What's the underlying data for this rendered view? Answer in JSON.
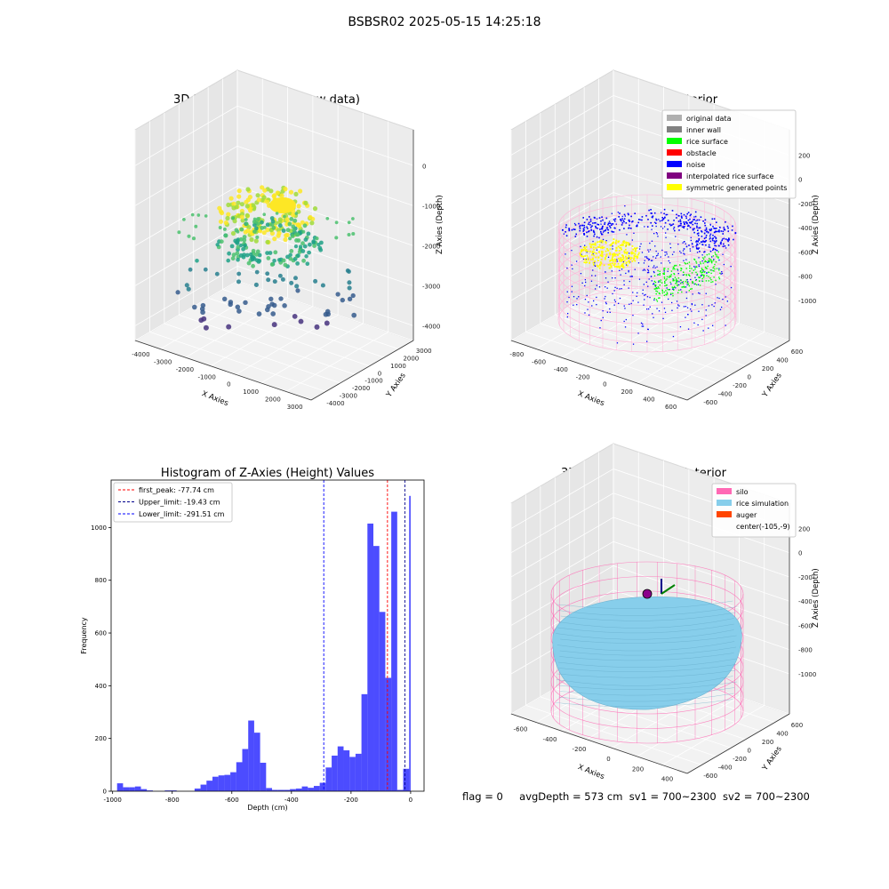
{
  "page_title": "BSBSR02 2025-05-15 14:25:18",
  "footer": {
    "flag": "flag = 0",
    "avg_depth": "avgDepth = 573 cm",
    "sv1": "sv1 = 700~2300",
    "sv2": "sv2 = 700~2300"
  },
  "chart_data": [
    {
      "type": "scatter",
      "title": "3D Plot of Silo Interior(row data)",
      "xlabel": "X Axies",
      "ylabel": "Y Axies",
      "zlabel": "Z Axies (Depth)",
      "x_ticks": [
        "-4000",
        "-3000",
        "-2000",
        "-1000",
        "0",
        "1000",
        "2000",
        "3000"
      ],
      "y_ticks": [
        "-4000",
        "-3000",
        "-2000",
        "-1000",
        "0",
        "1000",
        "2000",
        "3000"
      ],
      "z_ticks": [
        "0",
        "-1000",
        "-2000",
        "-3000",
        "-4000"
      ],
      "xlim": [
        -4000,
        3500
      ],
      "ylim": [
        -4000,
        3500
      ],
      "zlim": [
        -4500,
        300
      ],
      "colormap": [
        "#fde725",
        "#a0da39",
        "#4ac16d",
        "#1fa187",
        "#277f8e",
        "#365c8d",
        "#46327e"
      ]
    },
    {
      "type": "scatter",
      "title": "3D classify of Silo Interior",
      "xlabel": "X Axies",
      "ylabel": "Y Axies",
      "zlabel": "Z Axies (Depth)",
      "x_ticks": [
        "-800",
        "-600",
        "-400",
        "-200",
        "0",
        "200",
        "400",
        "600"
      ],
      "y_ticks": [
        "-600",
        "-400",
        "-200",
        "0",
        "200",
        "400",
        "600"
      ],
      "z_ticks": [
        "200",
        "0",
        "-200",
        "-400",
        "-600",
        "-800",
        "-1000"
      ],
      "legend_position": "top-right",
      "legend": [
        {
          "label": "original data",
          "color": "#b0b0b0"
        },
        {
          "label": "inner wall",
          "color": "#808080"
        },
        {
          "label": "rice surface",
          "color": "#00ff00"
        },
        {
          "label": "obstacle",
          "color": "#ff0000"
        },
        {
          "label": "noise",
          "color": "#0000ff"
        },
        {
          "label": "interpolated rice surface",
          "color": "#800080"
        },
        {
          "label": "symmetric generated points",
          "color": "#ffff00"
        }
      ]
    },
    {
      "type": "bar",
      "title": "Histogram of Z-Axies (Height) Values",
      "xlabel": "Depth (cm)",
      "ylabel": "Frequency",
      "xlim": [
        -1005,
        45
      ],
      "ylim": [
        0,
        1180
      ],
      "x_ticks": [
        -1000,
        -800,
        -600,
        -400,
        -200,
        0
      ],
      "y_ticks": [
        0,
        200,
        400,
        600,
        800,
        1000
      ],
      "bar_color": "#0000ff",
      "bins": [
        {
          "x0": -985,
          "x1": -965,
          "v": 30
        },
        {
          "x0": -965,
          "x1": -945,
          "v": 15
        },
        {
          "x0": -945,
          "x1": -925,
          "v": 15
        },
        {
          "x0": -925,
          "x1": -905,
          "v": 18
        },
        {
          "x0": -905,
          "x1": -885,
          "v": 8
        },
        {
          "x0": -885,
          "x1": -865,
          "v": 3
        },
        {
          "x0": -825,
          "x1": -805,
          "v": 3
        },
        {
          "x0": -805,
          "x1": -785,
          "v": 3
        },
        {
          "x0": -725,
          "x1": -705,
          "v": 10
        },
        {
          "x0": -705,
          "x1": -685,
          "v": 25
        },
        {
          "x0": -685,
          "x1": -665,
          "v": 40
        },
        {
          "x0": -665,
          "x1": -645,
          "v": 55
        },
        {
          "x0": -645,
          "x1": -625,
          "v": 60
        },
        {
          "x0": -625,
          "x1": -605,
          "v": 62
        },
        {
          "x0": -605,
          "x1": -585,
          "v": 72
        },
        {
          "x0": -585,
          "x1": -565,
          "v": 110
        },
        {
          "x0": -565,
          "x1": -545,
          "v": 160
        },
        {
          "x0": -545,
          "x1": -525,
          "v": 268
        },
        {
          "x0": -525,
          "x1": -505,
          "v": 222
        },
        {
          "x0": -505,
          "x1": -485,
          "v": 108
        },
        {
          "x0": -485,
          "x1": -465,
          "v": 12
        },
        {
          "x0": -465,
          "x1": -445,
          "v": 5
        },
        {
          "x0": -445,
          "x1": -425,
          "v": 5
        },
        {
          "x0": -425,
          "x1": -405,
          "v": 5
        },
        {
          "x0": -405,
          "x1": -385,
          "v": 8
        },
        {
          "x0": -385,
          "x1": -365,
          "v": 10
        },
        {
          "x0": -365,
          "x1": -345,
          "v": 18
        },
        {
          "x0": -345,
          "x1": -325,
          "v": 13
        },
        {
          "x0": -325,
          "x1": -305,
          "v": 20
        },
        {
          "x0": -305,
          "x1": -285,
          "v": 32
        },
        {
          "x0": -285,
          "x1": -265,
          "v": 90
        },
        {
          "x0": -265,
          "x1": -245,
          "v": 135
        },
        {
          "x0": -245,
          "x1": -225,
          "v": 170
        },
        {
          "x0": -225,
          "x1": -205,
          "v": 155
        },
        {
          "x0": -205,
          "x1": -185,
          "v": 130
        },
        {
          "x0": -185,
          "x1": -165,
          "v": 142
        },
        {
          "x0": -165,
          "x1": -145,
          "v": 368
        },
        {
          "x0": -145,
          "x1": -125,
          "v": 1015
        },
        {
          "x0": -125,
          "x1": -105,
          "v": 930
        },
        {
          "x0": -105,
          "x1": -85,
          "v": 680
        },
        {
          "x0": -85,
          "x1": -65,
          "v": 430
        },
        {
          "x0": -65,
          "x1": -45,
          "v": 1060
        },
        {
          "x0": -45,
          "x1": -25,
          "v": 5
        },
        {
          "x0": -25,
          "x1": -5,
          "v": 85
        },
        {
          "x0": -5,
          "x1": 0,
          "v": 1120
        }
      ],
      "vlines": [
        {
          "label": "first_peak: -77.74 cm",
          "x": -77.74,
          "color": "#ff0000"
        },
        {
          "label": "Upper_limit: -19.43 cm",
          "x": -19.43,
          "color": "#00008b"
        },
        {
          "label": "Lower_limit: -291.51 cm",
          "x": -291.51,
          "color": "#0000ff"
        }
      ],
      "legend_position": "top-left"
    },
    {
      "type": "area",
      "title": "3D simulation of Silo Interior",
      "xlabel": "X Axies",
      "ylabel": "Y Axies",
      "zlabel": "Z Axies (Depth)",
      "x_ticks": [
        "-600",
        "-400",
        "-200",
        "0",
        "200",
        "400"
      ],
      "y_ticks": [
        "-600",
        "-400",
        "-200",
        "0",
        "200",
        "400",
        "600"
      ],
      "z_ticks": [
        "200",
        "0",
        "-200",
        "-400",
        "-600",
        "-800",
        "-1000"
      ],
      "legend_position": "top-right",
      "legend": [
        {
          "label": "silo",
          "color": "#ff69b4"
        },
        {
          "label": "rice simulation",
          "color": "#87ceeb"
        },
        {
          "label": "auger",
          "color": "#ff4500"
        },
        {
          "label": "center(-105,-9)",
          "color": ""
        }
      ]
    }
  ]
}
